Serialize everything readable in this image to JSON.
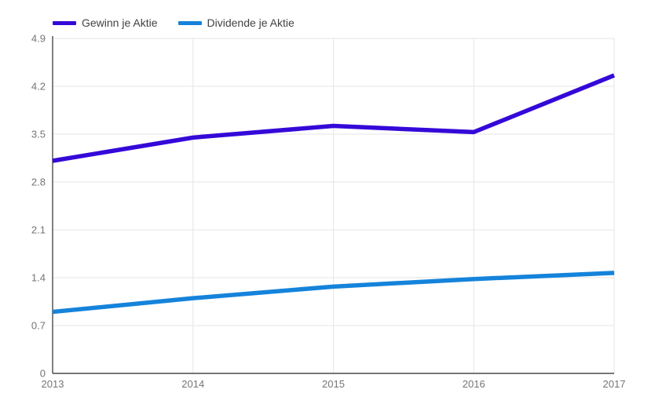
{
  "chart_data": {
    "type": "line",
    "categories": [
      "2013",
      "2014",
      "2015",
      "2016",
      "2017"
    ],
    "series": [
      {
        "name": "Gewinn je Aktie",
        "color": "#3409d8",
        "values": [
          3.11,
          3.45,
          3.62,
          3.53,
          4.36
        ]
      },
      {
        "name": "Dividende je Aktie",
        "color": "#1583db",
        "values": [
          0.9,
          1.1,
          1.27,
          1.38,
          1.47
        ]
      }
    ],
    "title": "",
    "xlabel": "",
    "ylabel": "",
    "ylim": [
      0,
      4.9
    ],
    "yticks": [
      0,
      0.7,
      1.4,
      2.1,
      2.8,
      3.5,
      4.2,
      4.9
    ],
    "ytick_labels": [
      "0",
      "0.7",
      "1.4",
      "2.1",
      "2.8",
      "3.5",
      "4.2",
      "4.9"
    ],
    "grid": true,
    "legend_position": "top-left"
  },
  "colors": {
    "background": "#ffffff",
    "gridline": "#e6e6e6",
    "axis_line": "#4a4a4a",
    "tick_text": "#757575",
    "legend_text": "#424242"
  }
}
